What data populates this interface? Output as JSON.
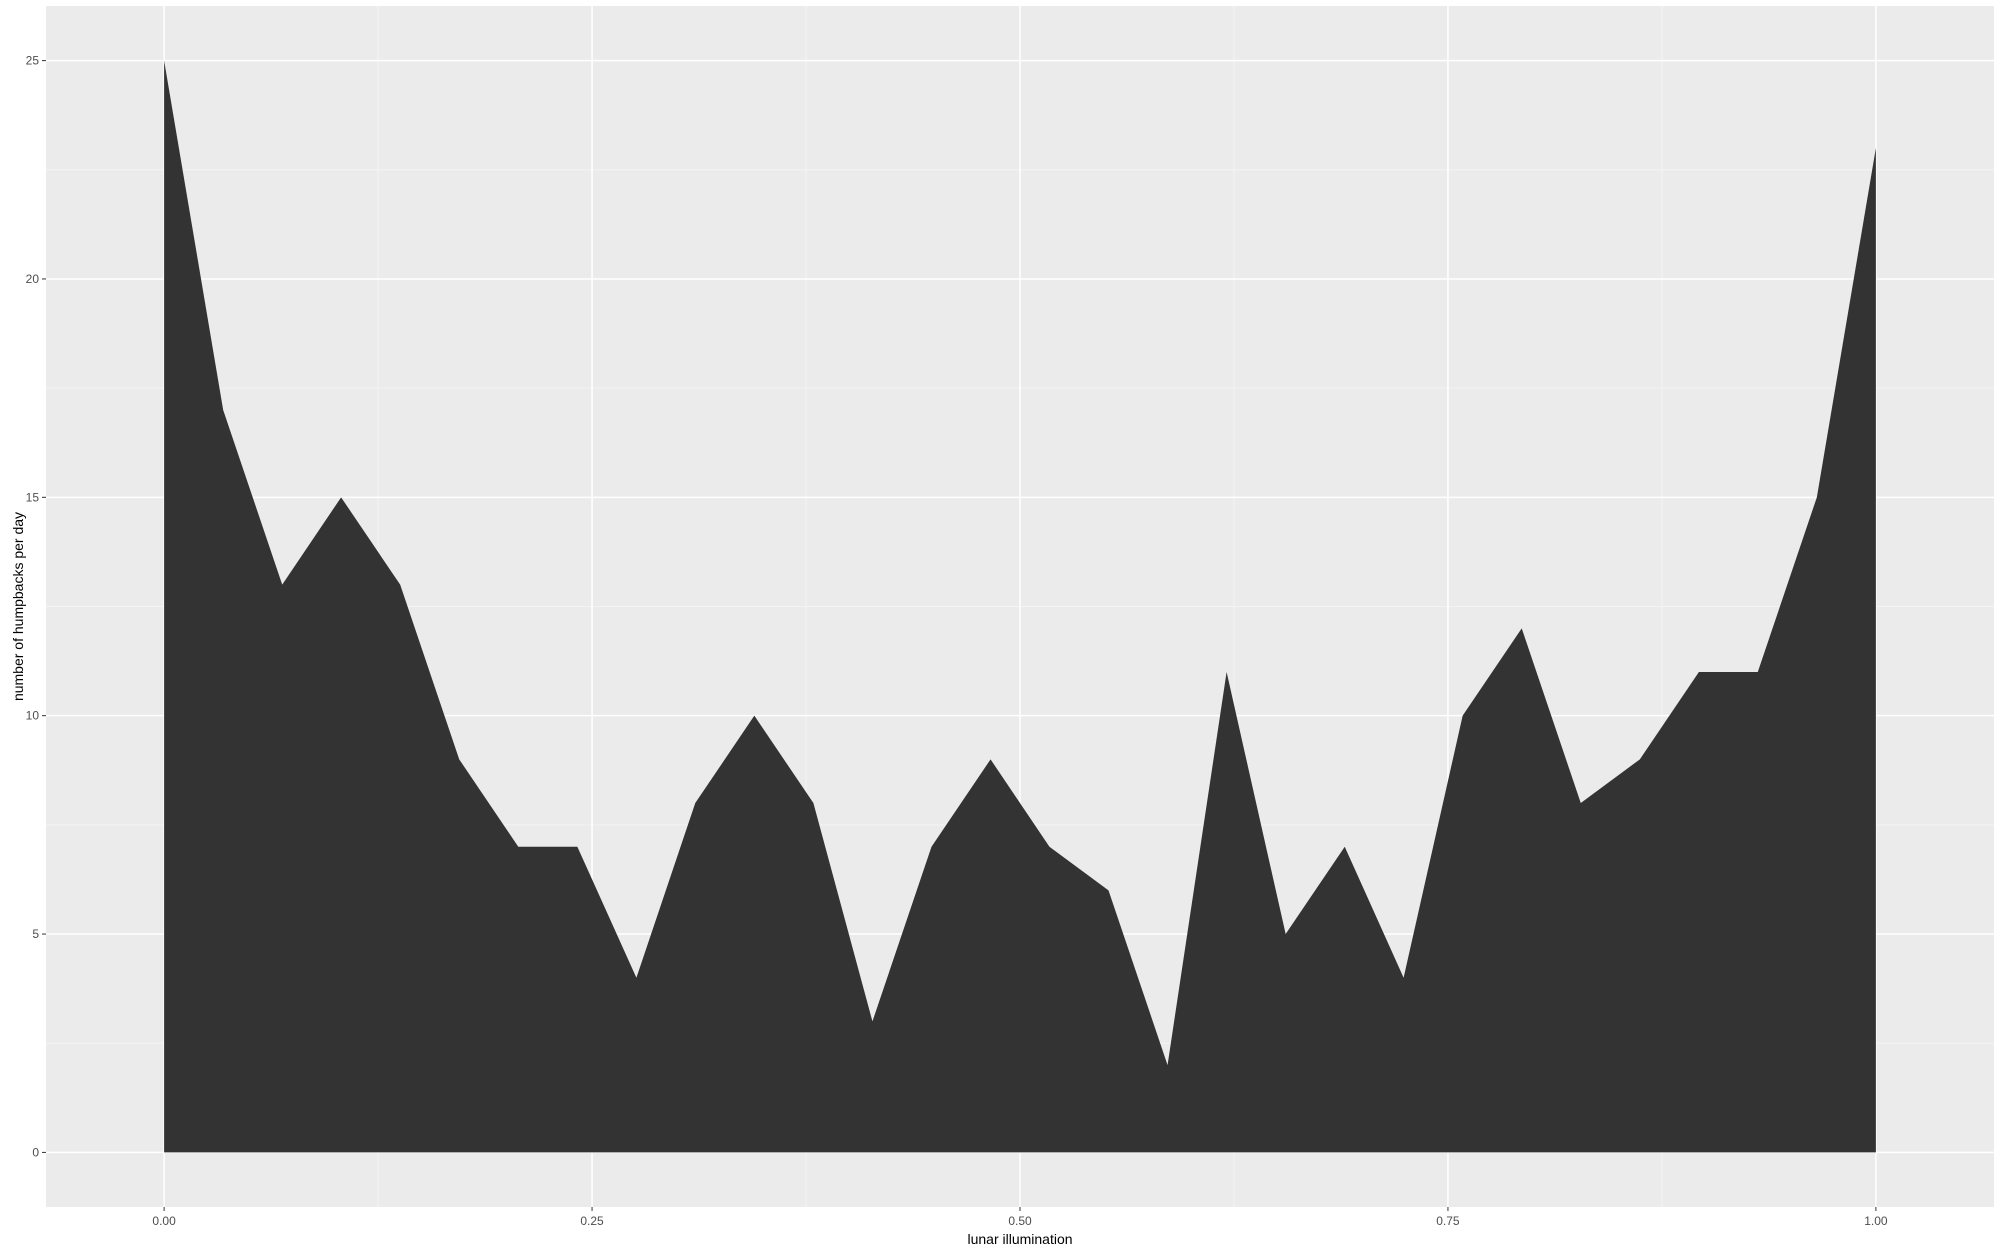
{
  "chart_data": {
    "type": "area",
    "title": "",
    "xlabel": "lunar illumination",
    "ylabel": "number of humpbacks per day",
    "xlim": [
      -0.069,
      1.069
    ],
    "ylim": [
      -1.25,
      26.25
    ],
    "x_ticks": [
      0.0,
      0.25,
      0.5,
      0.75,
      1.0
    ],
    "x_tick_labels": [
      "0.00",
      "0.25",
      "0.50",
      "0.75",
      "1.00"
    ],
    "y_ticks": [
      0,
      5,
      10,
      15,
      20,
      25
    ],
    "y_tick_labels": [
      "0",
      "5",
      "10",
      "15",
      "20",
      "25"
    ],
    "grid": true,
    "legend": "none",
    "colors": {
      "panel_background": "#ebebeb",
      "grid_major": "#ffffff",
      "grid_minor": "#f4f4f4",
      "area_fill": "#333333",
      "tick_text": "#4d4d4d",
      "axis_text": "#000000"
    },
    "series": [
      {
        "x": [
          0.0,
          0.0345,
          0.069,
          0.1034,
          0.1379,
          0.1724,
          0.2069,
          0.2414,
          0.2759,
          0.3103,
          0.3448,
          0.3793,
          0.4138,
          0.4483,
          0.4828,
          0.5172,
          0.5517,
          0.5862,
          0.6207,
          0.6552,
          0.6897,
          0.7241,
          0.7586,
          0.7931,
          0.8276,
          0.8621,
          0.8966,
          0.931,
          0.9655,
          1.0
        ],
        "values": [
          25,
          17,
          13,
          15,
          13,
          9,
          7,
          7,
          4,
          8,
          10,
          8,
          3,
          7,
          9,
          7,
          6,
          2,
          11,
          5,
          7,
          4,
          10,
          12,
          8,
          9,
          11,
          11,
          15,
          23
        ]
      }
    ]
  }
}
